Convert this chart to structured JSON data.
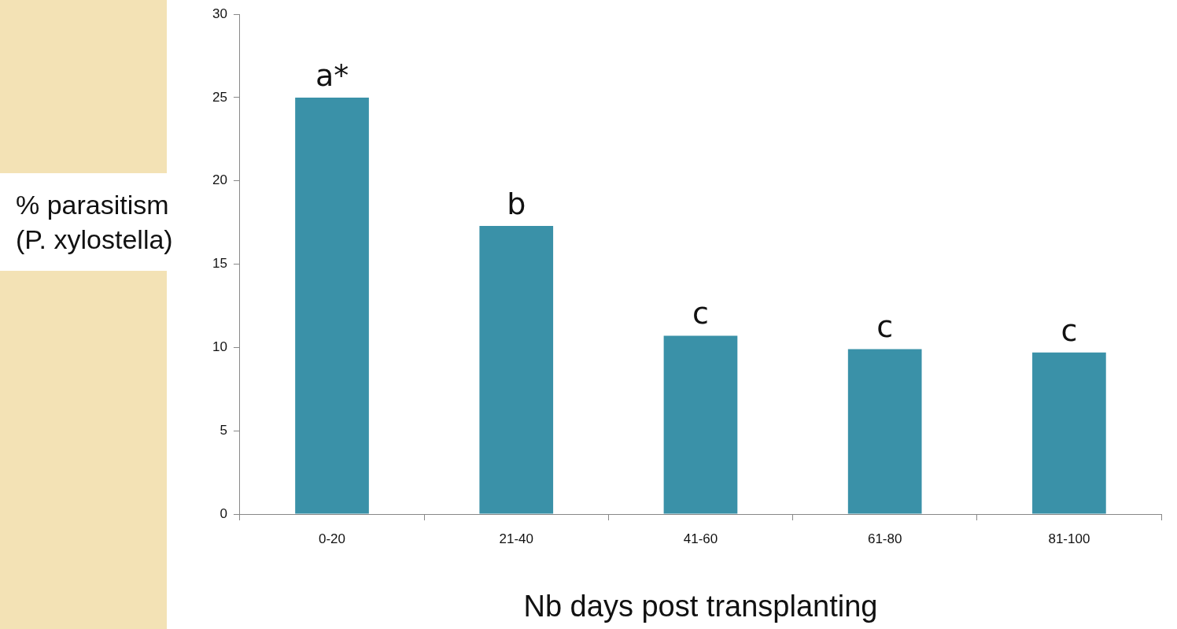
{
  "chart_data": {
    "type": "bar",
    "categories": [
      "0-20",
      "21-40",
      "41-60",
      "61-80",
      "81-100"
    ],
    "values": [
      25,
      17.3,
      10.7,
      9.9,
      9.7
    ],
    "color": "#3a91a8",
    "ylim": [
      0,
      30
    ],
    "yticks": [
      0,
      5,
      10,
      15,
      20,
      25,
      30
    ],
    "xlabel": "Nb days post transplanting",
    "ylabel": "% parasitism (P. xylostella)",
    "annotations": [
      {
        "text": "a*",
        "x": "0-20",
        "y": 25
      },
      {
        "text": "b",
        "x": "21-40",
        "y": 17.3
      },
      {
        "text": "c",
        "x": "41-60",
        "y": 10.7
      },
      {
        "text": "c",
        "x": "61-80",
        "y": 9.9
      },
      {
        "text": "c",
        "x": "81-100",
        "y": 9.7
      }
    ],
    "grid": false,
    "legend": false
  }
}
